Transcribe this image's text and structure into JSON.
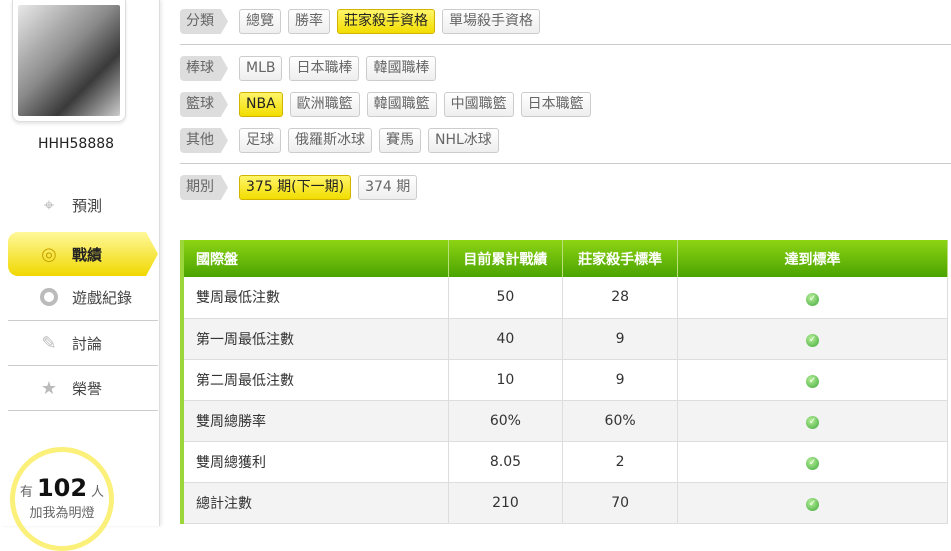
{
  "user": {
    "name": "HHH58888"
  },
  "nav": [
    {
      "label": "預測",
      "icon": "crosshair-icon"
    },
    {
      "label": "戰績",
      "icon": "target-icon",
      "active": true
    },
    {
      "label": "遊戲紀錄",
      "icon": "ring-icon"
    },
    {
      "label": "討論",
      "icon": "chat-edit-icon"
    },
    {
      "label": "榮譽",
      "icon": "medal-icon"
    }
  ],
  "fans": {
    "prefix": "有",
    "count": "102",
    "suffix": "人",
    "caption": "加我為明燈"
  },
  "filters": [
    {
      "label": "分類",
      "chips": [
        "總覽",
        "勝率",
        "莊家殺手資格",
        "單場殺手資格"
      ],
      "active": 2
    },
    {
      "label": "棒球",
      "chips": [
        "MLB",
        "日本職棒",
        "韓國職棒"
      ],
      "active": -1
    },
    {
      "label": "籃球",
      "chips": [
        "NBA",
        "歐洲職籃",
        "韓國職籃",
        "中國職籃",
        "日本職籃"
      ],
      "active": 0
    },
    {
      "label": "其他",
      "chips": [
        "足球",
        "俄羅斯冰球",
        "賽馬",
        "NHL冰球"
      ],
      "active": -1
    },
    {
      "label": "期別",
      "chips": [
        "375 期(下一期)",
        "374 期"
      ],
      "active": 0
    }
  ],
  "table": {
    "headers": [
      "國際盤",
      "目前累計戰績",
      "莊家殺手標準",
      "達到標準"
    ],
    "rows": [
      [
        "雙周最低注數",
        "50",
        "28"
      ],
      [
        "第一周最低注數",
        "40",
        "9"
      ],
      [
        "第二周最低注數",
        "10",
        "9"
      ],
      [
        "雙周總勝率",
        "60%",
        "60%"
      ],
      [
        "雙周總獲利",
        "8.05",
        "2"
      ],
      [
        "總計注數",
        "210",
        "70"
      ]
    ],
    "status_icon": "check-circle-icon",
    "accent": "#5ab20a"
  }
}
